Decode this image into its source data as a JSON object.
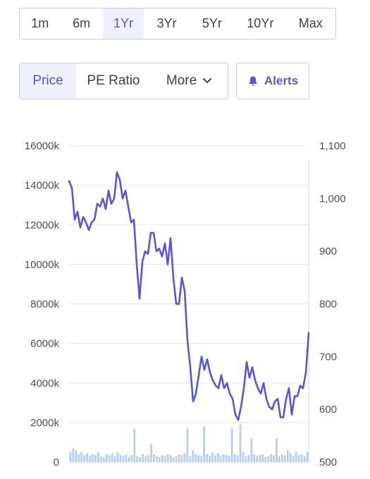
{
  "ranges": [
    "1m",
    "6m",
    "1Yr",
    "3Yr",
    "5Yr",
    "10Yr",
    "Max"
  ],
  "active_range": "1Yr",
  "metrics": {
    "price": "Price",
    "pe_ratio": "PE Ratio",
    "more": "More"
  },
  "alerts_label": "Alerts",
  "icons": {
    "more": "chevron-down-icon",
    "alerts": "bell-icon"
  },
  "colors": {
    "accent": "#5a56d6",
    "price_line": "#5a56d6",
    "volume_bar": "#b5cdf2",
    "grid": "#e1e4ea"
  },
  "chart_data": {
    "type": "line",
    "title": "",
    "left_axis": {
      "ticks": [
        "0",
        "2000k",
        "4000k",
        "6000k",
        "8000k",
        "10000k",
        "12000k",
        "14000k",
        "16000k"
      ],
      "range": [
        0,
        16000
      ]
    },
    "right_axis": {
      "ticks": [
        "500",
        "600",
        "700",
        "800",
        "900",
        "1,000",
        "1,100"
      ],
      "range": [
        500,
        1100
      ]
    },
    "grid": true,
    "series": [
      {
        "kind": "price",
        "axis": "right",
        "values": [
          1033,
          1020,
          960,
          975,
          945,
          965,
          955,
          940,
          955,
          960,
          990,
          985,
          1000,
          980,
          1015,
          990,
          1000,
          1050,
          1035,
          1000,
          1015,
          985,
          955,
          960,
          875,
          810,
          880,
          900,
          895,
          935,
          935,
          900,
          905,
          890,
          915,
          875,
          925,
          850,
          800,
          800,
          850,
          825,
          730,
          680,
          615,
          630,
          665,
          700,
          675,
          695,
          670,
          655,
          645,
          640,
          665,
          640,
          650,
          630,
          620,
          590,
          580,
          605,
          640,
          690,
          660,
          680,
          655,
          640,
          630,
          650,
          620,
          605,
          600,
          615,
          620,
          585,
          585,
          620,
          640,
          590,
          625,
          625,
          645,
          640,
          670,
          745
        ]
      },
      {
        "kind": "volume",
        "axis": "left",
        "values": [
          500,
          700,
          600,
          400,
          500,
          350,
          450,
          300,
          400,
          350,
          500,
          300,
          250,
          400,
          350,
          450,
          300,
          500,
          350,
          300,
          400,
          250,
          350,
          1700,
          300,
          250,
          400,
          300,
          350,
          900,
          400,
          300,
          250,
          350,
          300,
          400,
          350,
          250,
          300,
          400,
          350,
          450,
          1700,
          300,
          600,
          400,
          350,
          300,
          1800,
          400,
          300,
          500,
          350,
          450,
          300,
          400,
          350,
          300,
          1700,
          400,
          350,
          1900,
          500,
          300,
          350,
          1200,
          400,
          300,
          350,
          400,
          250,
          300,
          400,
          350,
          1200,
          300,
          400,
          350,
          600,
          450,
          300,
          500,
          350,
          400,
          300,
          500
        ]
      }
    ]
  }
}
